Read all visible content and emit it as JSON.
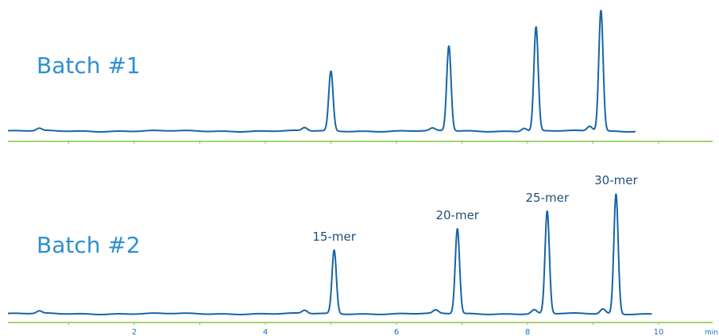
{
  "chart_data": {
    "type": "line",
    "x_unit": "min",
    "xlim": [
      0,
      10.5
    ],
    "x_ticks": [
      2,
      4,
      6,
      8,
      10
    ],
    "colors": {
      "trace": "#1565a8",
      "axis": "#8cc63f",
      "label": "#2f8fd0",
      "tick": "#1a73c8"
    },
    "series": [
      {
        "name": "Batch #1",
        "x_end": 9.65,
        "peaks": [
          {
            "t": 0.55,
            "h": 3
          },
          {
            "t": 4.6,
            "h": 4
          },
          {
            "t": 5.0,
            "h": 75
          },
          {
            "t": 6.55,
            "h": 3
          },
          {
            "t": 6.8,
            "h": 107
          },
          {
            "t": 7.95,
            "h": 4
          },
          {
            "t": 8.13,
            "h": 131
          },
          {
            "t": 8.95,
            "h": 6
          },
          {
            "t": 9.12,
            "h": 152
          }
        ]
      },
      {
        "name": "Batch #2",
        "x_end": 9.9,
        "peaks": [
          {
            "t": 0.55,
            "h": 3,
            "label": ""
          },
          {
            "t": 4.6,
            "h": 4,
            "label": ""
          },
          {
            "t": 5.05,
            "h": 80,
            "label": "15-mer"
          },
          {
            "t": 6.6,
            "h": 4,
            "label": ""
          },
          {
            "t": 6.93,
            "h": 107,
            "label": "20-mer"
          },
          {
            "t": 8.1,
            "h": 5,
            "label": ""
          },
          {
            "t": 8.3,
            "h": 129,
            "label": "25-mer"
          },
          {
            "t": 9.15,
            "h": 6,
            "label": ""
          },
          {
            "t": 9.35,
            "h": 151,
            "label": "30-mer"
          }
        ]
      }
    ]
  }
}
